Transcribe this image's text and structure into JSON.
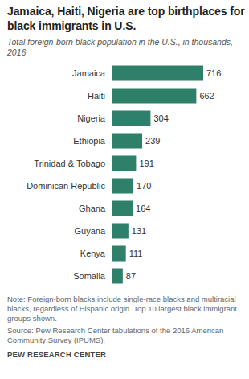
{
  "chart_data": {
    "type": "bar",
    "orientation": "horizontal",
    "title": "Jamaica, Haiti, Nigeria are top birthplaces for black immigrants in U.S.",
    "subtitle": "Total foreign-born black population in the U.S., in thousands, 2016",
    "categories": [
      "Jamaica",
      "Haiti",
      "Nigeria",
      "Ethiopia",
      "Trinidad & Tobago",
      "Dominican Republic",
      "Ghana",
      "Guyana",
      "Kenya",
      "Somalia"
    ],
    "values": [
      716,
      662,
      304,
      239,
      191,
      170,
      164,
      131,
      111,
      87
    ],
    "color": "#2f806b",
    "xlim": [
      0,
      716
    ],
    "data_labels": true,
    "tick_labels": "y",
    "grid": false,
    "notes": [
      "Note: Foreign-born blacks include single-race blacks and multiracial blacks, regardless of Hispanic origin. Top 10 largest black immigrant groups shown.",
      "Source: Pew Research Center tabulations of the 2016 American Community Survey (IPUMS)."
    ],
    "credit": "PEW RESEARCH CENTER"
  }
}
